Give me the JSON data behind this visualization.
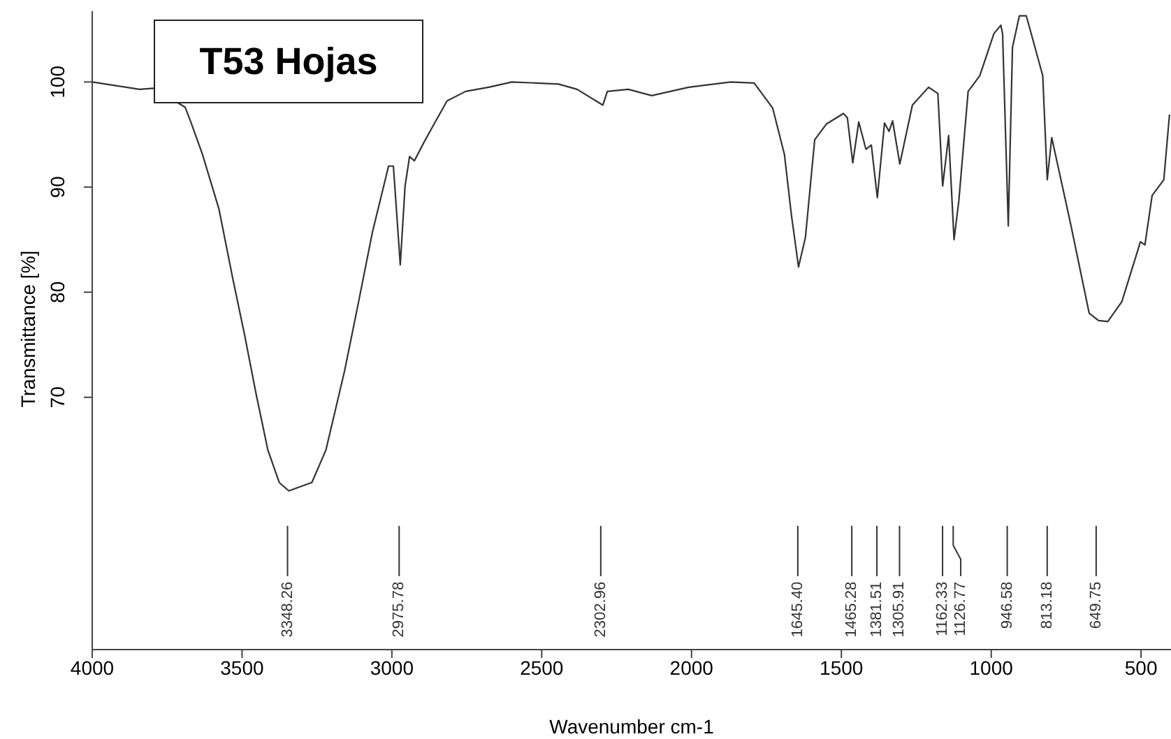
{
  "chart_data": {
    "type": "line",
    "title": "T53 Hojas",
    "xlabel": "Wavenumber cm-1",
    "ylabel": "Transmittance [%]",
    "x": [
      4000,
      3842,
      3795,
      3690,
      3671,
      3632,
      3577,
      3531,
      3492,
      3453,
      3414,
      3376,
      3344,
      3267,
      3220,
      3158,
      3111,
      3065,
      3011,
      2995,
      2972,
      2956,
      2941,
      2925,
      2894,
      2863,
      2816,
      2754,
      2677,
      2599,
      2444,
      2382,
      2296,
      2281,
      2211,
      2133,
      2009,
      1869,
      1791,
      1729,
      1690,
      1667,
      1643,
      1620,
      1589,
      1550,
      1493,
      1480,
      1462,
      1442,
      1418,
      1400,
      1380,
      1356,
      1341,
      1329,
      1305,
      1263,
      1209,
      1178,
      1162,
      1142,
      1124,
      1108,
      1077,
      1038,
      991,
      968,
      962,
      943,
      929,
      906,
      883,
      828,
      813,
      798,
      735,
      673,
      642,
      611,
      564,
      502,
      487,
      463,
      424,
      405
    ],
    "series": [
      {
        "color": "#333333",
        "values": [
          100.0,
          99.3,
          99.4,
          97.6,
          96.2,
          93.1,
          87.9,
          81.3,
          76.0,
          70.3,
          65.0,
          61.9,
          61.1,
          61.9,
          65.0,
          72.5,
          79.1,
          85.7,
          92.0,
          92.0,
          82.6,
          90.1,
          92.9,
          92.5,
          94.2,
          95.8,
          98.2,
          99.1,
          99.5,
          100.0,
          99.8,
          99.3,
          97.8,
          99.1,
          99.3,
          98.7,
          99.5,
          100.0,
          99.9,
          97.5,
          93.1,
          87.4,
          82.4,
          85.2,
          94.5,
          96.0,
          97.0,
          96.6,
          92.3,
          96.2,
          93.6,
          94.0,
          89.0,
          96.1,
          95.3,
          96.3,
          92.2,
          97.8,
          99.5,
          98.9,
          90.1,
          94.9,
          85.0,
          88.7,
          99.1,
          100.6,
          104.6,
          105.4,
          104.6,
          86.3,
          103.3,
          106.3,
          106.3,
          100.6,
          90.7,
          94.7,
          86.5,
          78.0,
          77.3,
          77.2,
          79.1,
          84.8,
          84.5,
          89.2,
          90.7,
          96.9
        ]
      }
    ],
    "xlim": [
      4000,
      400
    ],
    "xticks": [
      4000,
      3500,
      3000,
      2500,
      2000,
      1500,
      1000,
      500
    ],
    "ylim": [
      46,
      107
    ],
    "yticks": [
      70,
      80,
      90,
      100
    ],
    "grid": false,
    "legend": false,
    "marker": "none",
    "line_style": "solid",
    "annotations": [
      {
        "text": "3348.26",
        "x": 3348.26
      },
      {
        "text": "2975.78",
        "x": 2975.78
      },
      {
        "text": "2302.96",
        "x": 2302.96
      },
      {
        "text": "1645.40",
        "x": 1645.4
      },
      {
        "text": "1465.28",
        "x": 1465.28
      },
      {
        "text": "1381.51",
        "x": 1381.51
      },
      {
        "text": "1305.91",
        "x": 1305.91
      },
      {
        "text": "1162.33",
        "x": 1162.33
      },
      {
        "text": "1126.77",
        "x": 1126.77
      },
      {
        "text": "946.58",
        "x": 946.58
      },
      {
        "text": "813.18",
        "x": 813.18
      },
      {
        "text": "649.75",
        "x": 649.75
      }
    ]
  }
}
